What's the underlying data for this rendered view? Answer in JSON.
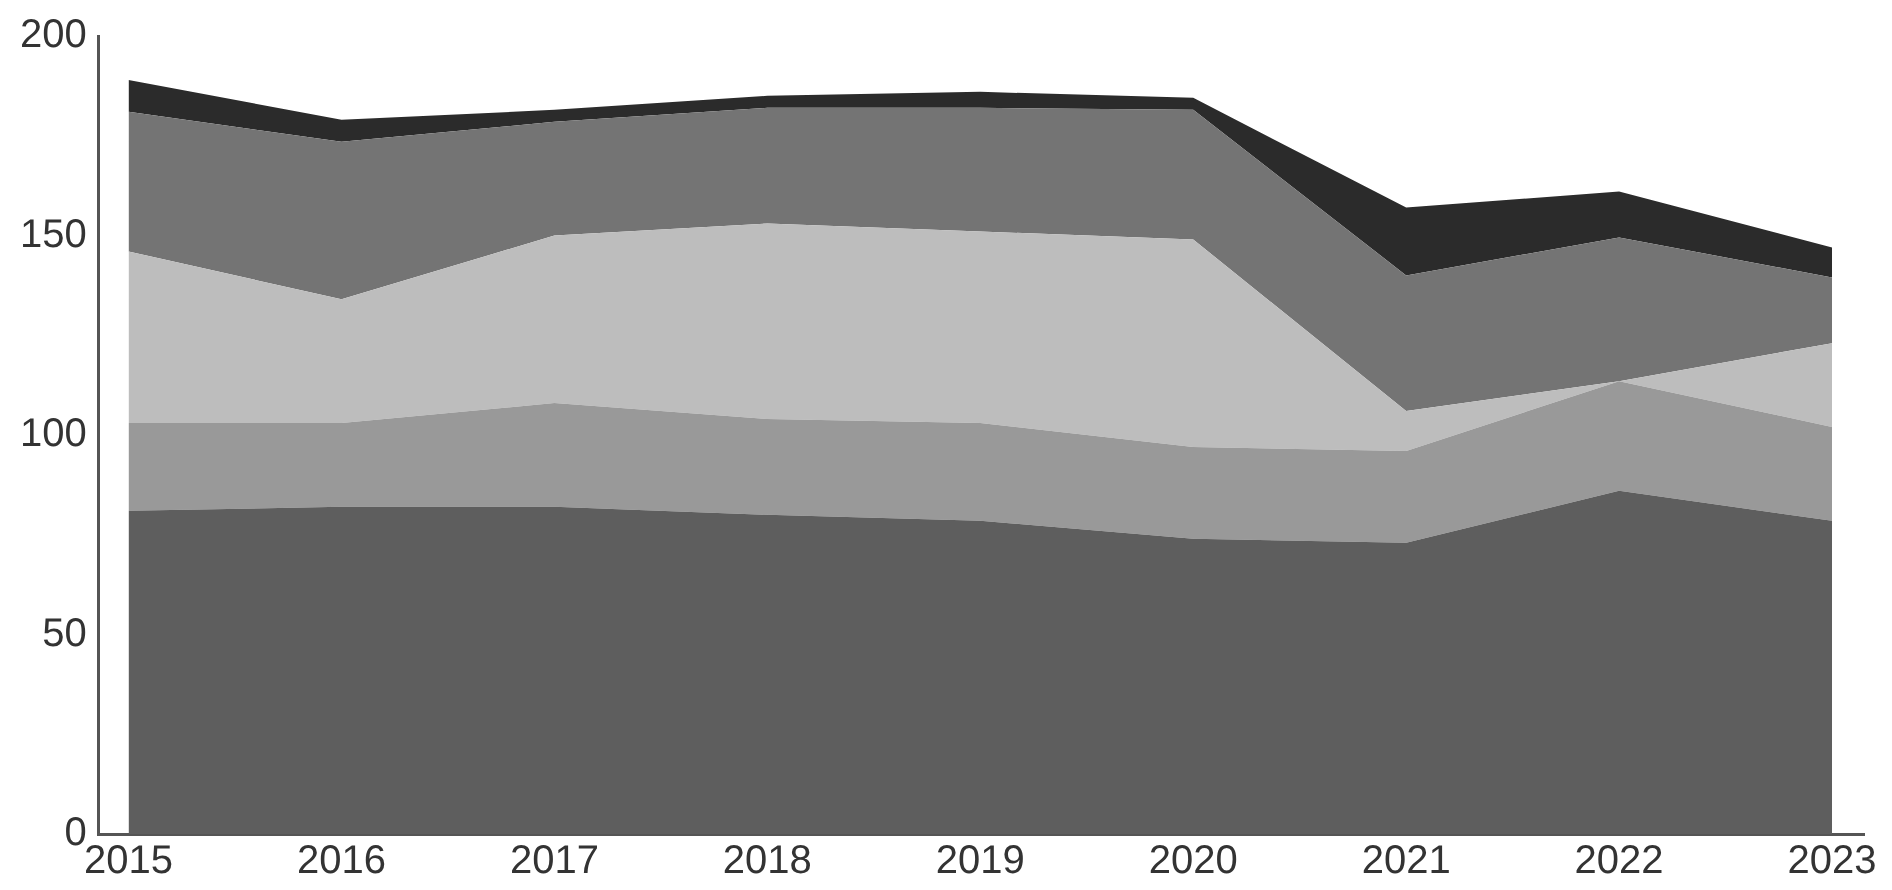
{
  "chart_data": {
    "type": "area",
    "stacked": true,
    "x": [
      2015,
      2016,
      2017,
      2018,
      2019,
      2020,
      2021,
      2022,
      2023
    ],
    "xlim": [
      2014.86,
      2023.15
    ],
    "xticks": [
      2015,
      2016,
      2017,
      2018,
      2019,
      2020,
      2021,
      2022,
      2023
    ],
    "ylim": [
      0,
      200
    ],
    "yticks": [
      0,
      50,
      100,
      150,
      200
    ],
    "grid": false,
    "legend": false,
    "marker": "none",
    "series": [
      {
        "color": "#5e5e5e",
        "values": [
          81,
          82,
          82,
          80,
          78.5,
          74,
          73,
          86,
          78.5
        ]
      },
      {
        "color": "#999999",
        "values": [
          22,
          21,
          26,
          24,
          24.5,
          23,
          23,
          27.5,
          23.5
        ]
      },
      {
        "color": "#bdbdbd",
        "values": [
          43,
          31,
          42,
          49,
          48,
          52,
          10,
          0,
          21
        ]
      },
      {
        "color": "#747474",
        "values": [
          35,
          39.5,
          28.5,
          29,
          31,
          32.5,
          34,
          36,
          16.5
        ]
      },
      {
        "color": "#2b2b2b",
        "values": [
          8,
          5.5,
          3,
          3,
          4,
          3,
          17,
          11.5,
          7.5
        ]
      }
    ]
  }
}
